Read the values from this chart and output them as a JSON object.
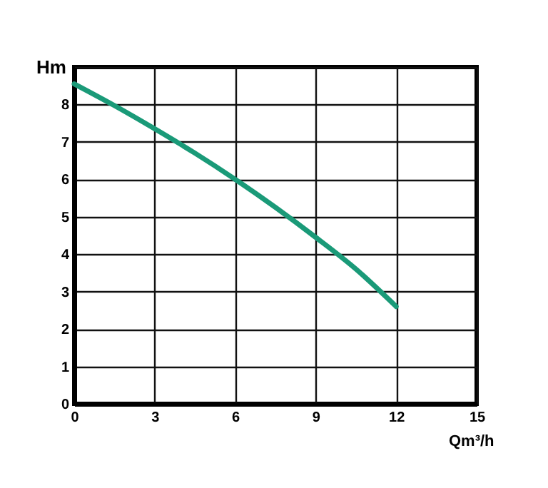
{
  "chart_data": {
    "type": "line",
    "xlabel": "Qm³/h",
    "ylabel": "Hm",
    "x": [
      0,
      1.5,
      3,
      4.5,
      6,
      7.5,
      9,
      10.5,
      12
    ],
    "series": [
      {
        "color": "#1a9a78",
        "values": [
          8.55,
          7.97,
          7.35,
          6.7,
          6.0,
          5.25,
          4.45,
          3.6,
          2.6
        ]
      }
    ],
    "xlim": [
      0,
      15
    ],
    "xticks": [
      0,
      3,
      6,
      9,
      12,
      15
    ],
    "ylim": [
      0,
      9
    ],
    "yticks": [
      0,
      1,
      2,
      3,
      4,
      5,
      6,
      7,
      8,
      {
        "value": 9,
        "label": null
      }
    ],
    "grid": true,
    "marker": "none",
    "line_style": "solid"
  }
}
